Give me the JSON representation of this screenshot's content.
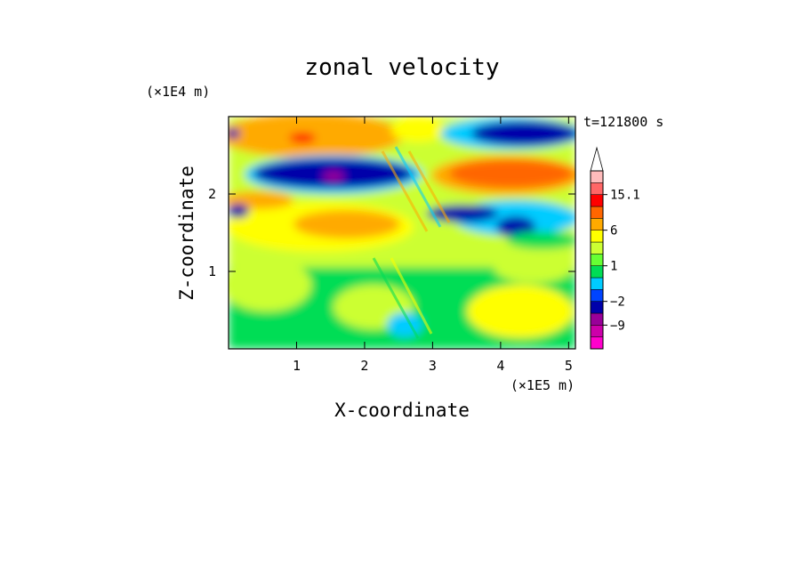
{
  "chart_data": {
    "type": "heatmap",
    "title": "zonal velocity",
    "time_label": "t=121800 s",
    "x_axis": {
      "label": "X-coordinate",
      "multiplier": "(×1E5 m)",
      "range": [
        0,
        5.1
      ],
      "ticks": [
        1,
        2,
        3,
        4,
        5
      ],
      "tick_labels": [
        "1",
        "2",
        "3",
        "4",
        "5"
      ]
    },
    "y_axis": {
      "label": "Z-coordinate",
      "multiplier": "(×1E4 m)",
      "range": [
        0,
        3.0
      ],
      "ticks": [
        1,
        2
      ],
      "tick_labels": [
        "1",
        "2"
      ]
    },
    "colorbar": {
      "levels": [
        -15,
        -12,
        -9,
        -6,
        -2,
        -1,
        0,
        1,
        2,
        4,
        6,
        9,
        12,
        15.1
      ],
      "colors": [
        "#ff00cc",
        "#cc00aa",
        "#990099",
        "#0000aa",
        "#0044ff",
        "#00ccff",
        "#00dd55",
        "#66ff33",
        "#ccff33",
        "#ffff00",
        "#ffaa00",
        "#ff6600",
        "#ff0000",
        "#ff6666",
        "#ffbbbb"
      ],
      "labels": [
        "15.1",
        "6",
        "1",
        "−2",
        "−9"
      ],
      "label_values": [
        15.1,
        6,
        1,
        -2,
        -9
      ],
      "extend_max": true
    },
    "field_description_bands": [
      {
        "z_range": [
          2.55,
          3.0
        ],
        "x_range": [
          0,
          2.8
        ],
        "value_approx": 6
      },
      {
        "z_range": [
          2.1,
          2.5
        ],
        "x_range": [
          0.5,
          2.5
        ],
        "value_approx": -9
      },
      {
        "z_range": [
          2.0,
          2.45
        ],
        "x_range": [
          3.0,
          5.1
        ],
        "value_approx": 6
      },
      {
        "z_range": [
          2.5,
          3.0
        ],
        "x_range": [
          3.2,
          5.1
        ],
        "value_approx": -6
      },
      {
        "z_range": [
          1.2,
          1.9
        ],
        "x_range": [
          0,
          3.0
        ],
        "value_approx": 3
      },
      {
        "z_range": [
          1.4,
          1.8
        ],
        "x_range": [
          3.6,
          4.6
        ],
        "value_approx": -6
      },
      {
        "z_range": [
          0,
          1.0
        ],
        "x_range": [
          0,
          5.1
        ],
        "value_approx": 1
      }
    ]
  }
}
